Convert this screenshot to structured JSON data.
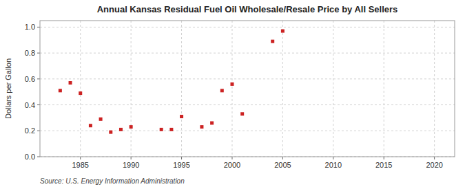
{
  "chart_data": {
    "type": "scatter",
    "title": "Annual Kansas Residual Fuel Oil Wholesale/Resale Price by All Sellers",
    "ylabel": "Dollars per Gallon",
    "annotation": "Source: U.S. Energy Information Administration",
    "color": "#cc2222",
    "marker": "square",
    "grid": true,
    "xlim": [
      1981,
      2022
    ],
    "ylim": [
      0.0,
      1.05
    ],
    "xticks": [
      1985,
      1990,
      1995,
      2000,
      2005,
      2010,
      2015,
      2020
    ],
    "yticks": [
      {
        "value": 0.0,
        "label": "0.0"
      },
      0.2,
      0.4,
      0.6,
      0.8,
      {
        "value": 1.0,
        "label": "1.0"
      }
    ],
    "x": [
      1983,
      1984,
      1985,
      1986,
      1987,
      1988,
      1989,
      1990,
      1993,
      1994,
      1995,
      1997,
      1998,
      1999,
      2000,
      2001,
      2004,
      2005
    ],
    "values": [
      0.51,
      0.57,
      0.49,
      0.24,
      0.29,
      0.19,
      0.21,
      0.23,
      0.21,
      0.21,
      0.31,
      0.23,
      0.26,
      0.51,
      0.56,
      0.33,
      0.89,
      0.97
    ]
  }
}
